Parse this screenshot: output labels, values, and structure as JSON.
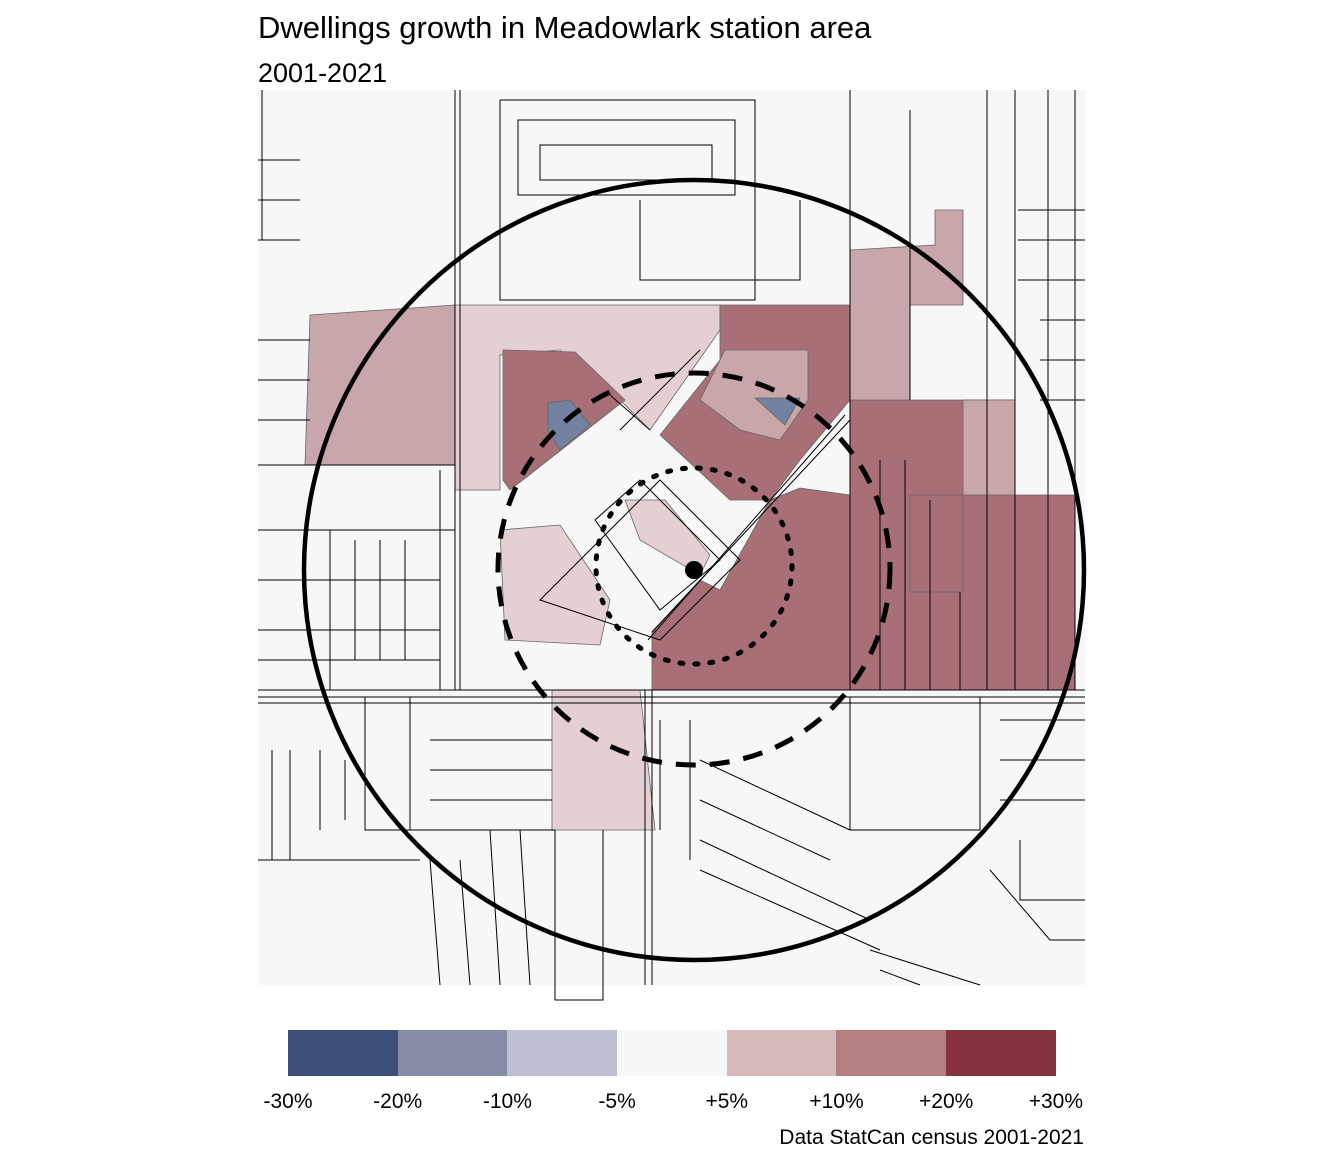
{
  "title": "Dwellings growth in Meadowlark station area",
  "subtitle": "2001-2021",
  "legend": {
    "colors": [
      "#3b4f78",
      "#868ba8",
      "#bec0d2",
      "#f7f7f7",
      "#d8babc",
      "#b57e80",
      "#86333f"
    ],
    "labels": [
      "-30%",
      "-20%",
      "-10%",
      "-5%",
      "+5%",
      "+10%",
      "+20%",
      "+30%"
    ]
  },
  "map_fill_colors": {
    "no_change": "#f7f7f7",
    "light_growth": "#e4d0d2",
    "medium_growth": "#c9a6aa",
    "strong_growth": "#a86f76",
    "decline": "#7282a0"
  },
  "overlays": {
    "outer_ring": "solid",
    "middle_ring": "dashed",
    "inner_ring": "dotted",
    "station_marker": "filled-circle"
  },
  "caption": "Data StatCan census 2001-2021"
}
